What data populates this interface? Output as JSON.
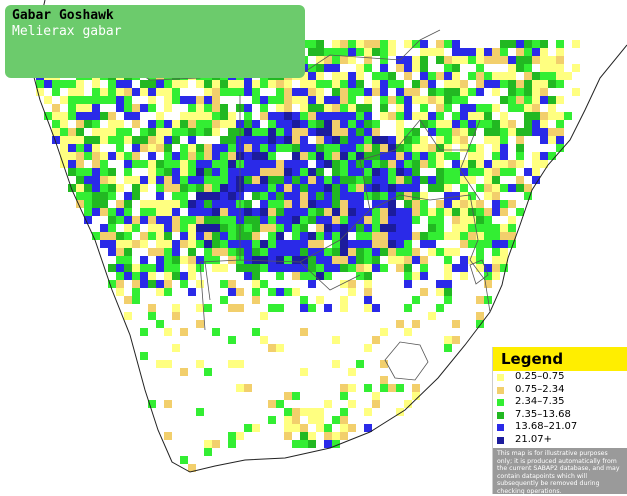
{
  "header": {
    "title": "Gabar Goshawk",
    "subtitle": "Melierax gabar"
  },
  "legend": {
    "title": "Legend",
    "items": [
      {
        "label": "0.25–0.75",
        "color": "#ffff80"
      },
      {
        "label": "0.75–2.34",
        "color": "#f2cf6c"
      },
      {
        "label": "2.34–7.35",
        "color": "#33ee33"
      },
      {
        "label": "7.35–13.68",
        "color": "#22b822"
      },
      {
        "label": "13.68–21.07",
        "color": "#2a2ae8"
      },
      {
        "label": "21.07+",
        "color": "#1c1c9c"
      }
    ],
    "disclaimer": "This map is for illustrative purposes only; it is produced automatically from the current SABAP2 database, and may contain datapoints which will subsequently be removed during checking operations."
  }
}
